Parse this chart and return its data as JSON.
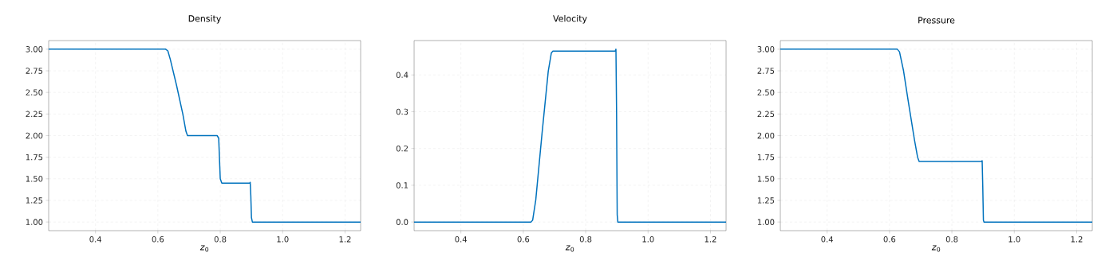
{
  "chart_data": [
    {
      "type": "line",
      "title": "Density",
      "xlabel": "*z*$_{0}$",
      "color": "#0072bd",
      "grid": true,
      "line_style": "solid",
      "xlim": [
        0.25,
        1.25
      ],
      "ylim": [
        0.9,
        3.1
      ],
      "xticks": [
        {
          "value": 0.4,
          "label": "0.4"
        },
        {
          "value": 0.6,
          "label": "0.6"
        },
        {
          "value": 0.8,
          "label": "0.8"
        },
        {
          "value": 1.0,
          "label": "1.0"
        },
        {
          "value": 1.2,
          "label": "1.2"
        }
      ],
      "yticks": [
        {
          "value": 1.0,
          "label": "1.00"
        },
        {
          "value": 1.25,
          "label": "1.25"
        },
        {
          "value": 1.5,
          "label": "1.50"
        },
        {
          "value": 1.75,
          "label": "1.75"
        },
        {
          "value": 2.0,
          "label": "2.00"
        },
        {
          "value": 2.25,
          "label": "2.25"
        },
        {
          "value": 2.5,
          "label": "2.50"
        },
        {
          "value": 2.75,
          "label": "2.75"
        },
        {
          "value": 3.0,
          "label": "3.00"
        }
      ],
      "x": [
        0.25,
        0.625,
        0.632,
        0.64,
        0.66,
        0.68,
        0.69,
        0.695,
        0.79,
        0.795,
        0.8,
        0.805,
        0.895,
        0.896,
        0.898,
        0.9,
        0.903,
        1.25
      ],
      "values": [
        3.0,
        3.0,
        2.98,
        2.88,
        2.58,
        2.25,
        2.05,
        2.0,
        2.0,
        1.97,
        1.5,
        1.45,
        1.45,
        1.46,
        1.3,
        1.05,
        1.0,
        1.0
      ]
    },
    {
      "type": "line",
      "title": "Velocity",
      "xlabel": "*z*$_{0}$",
      "color": "#0072bd",
      "grid": true,
      "line_style": "solid",
      "xlim": [
        0.25,
        1.25
      ],
      "ylim": [
        -0.0235,
        0.4935
      ],
      "xticks": [
        {
          "value": 0.4,
          "label": "0.4"
        },
        {
          "value": 0.6,
          "label": "0.6"
        },
        {
          "value": 0.8,
          "label": "0.8"
        },
        {
          "value": 1.0,
          "label": "1.0"
        },
        {
          "value": 1.2,
          "label": "1.2"
        }
      ],
      "yticks": [
        {
          "value": 0.0,
          "label": "0.0"
        },
        {
          "value": 0.1,
          "label": "0.1"
        },
        {
          "value": 0.2,
          "label": "0.2"
        },
        {
          "value": 0.3,
          "label": "0.3"
        },
        {
          "value": 0.4,
          "label": "0.4"
        }
      ],
      "x": [
        0.25,
        0.625,
        0.63,
        0.64,
        0.66,
        0.68,
        0.69,
        0.695,
        0.895,
        0.897,
        0.899,
        0.901,
        0.903,
        1.25
      ],
      "values": [
        0.0,
        0.0,
        0.005,
        0.06,
        0.24,
        0.41,
        0.46,
        0.465,
        0.465,
        0.47,
        0.3,
        0.02,
        0.0,
        0.0
      ]
    },
    {
      "type": "line",
      "title": "Pressure",
      "xlabel": "*z*$_{0}$",
      "color": "#0072bd",
      "grid": true,
      "line_style": "solid",
      "xlim": [
        0.25,
        1.25
      ],
      "ylim": [
        0.9,
        3.1
      ],
      "xticks": [
        {
          "value": 0.4,
          "label": "0.4"
        },
        {
          "value": 0.6,
          "label": "0.6"
        },
        {
          "value": 0.8,
          "label": "0.8"
        },
        {
          "value": 1.0,
          "label": "1.0"
        },
        {
          "value": 1.2,
          "label": "1.2"
        }
      ],
      "yticks": [
        {
          "value": 1.0,
          "label": "1.00"
        },
        {
          "value": 1.25,
          "label": "1.25"
        },
        {
          "value": 1.5,
          "label": "1.50"
        },
        {
          "value": 1.75,
          "label": "1.75"
        },
        {
          "value": 2.0,
          "label": "2.00"
        },
        {
          "value": 2.25,
          "label": "2.25"
        },
        {
          "value": 2.5,
          "label": "2.50"
        },
        {
          "value": 2.75,
          "label": "2.75"
        },
        {
          "value": 3.0,
          "label": "3.00"
        }
      ],
      "x": [
        0.25,
        0.625,
        0.632,
        0.645,
        0.66,
        0.68,
        0.69,
        0.695,
        0.895,
        0.897,
        0.899,
        0.901,
        0.903,
        1.25
      ],
      "values": [
        3.0,
        3.0,
        2.97,
        2.75,
        2.4,
        1.95,
        1.75,
        1.7,
        1.7,
        1.71,
        1.4,
        1.02,
        1.0,
        1.0
      ]
    }
  ]
}
